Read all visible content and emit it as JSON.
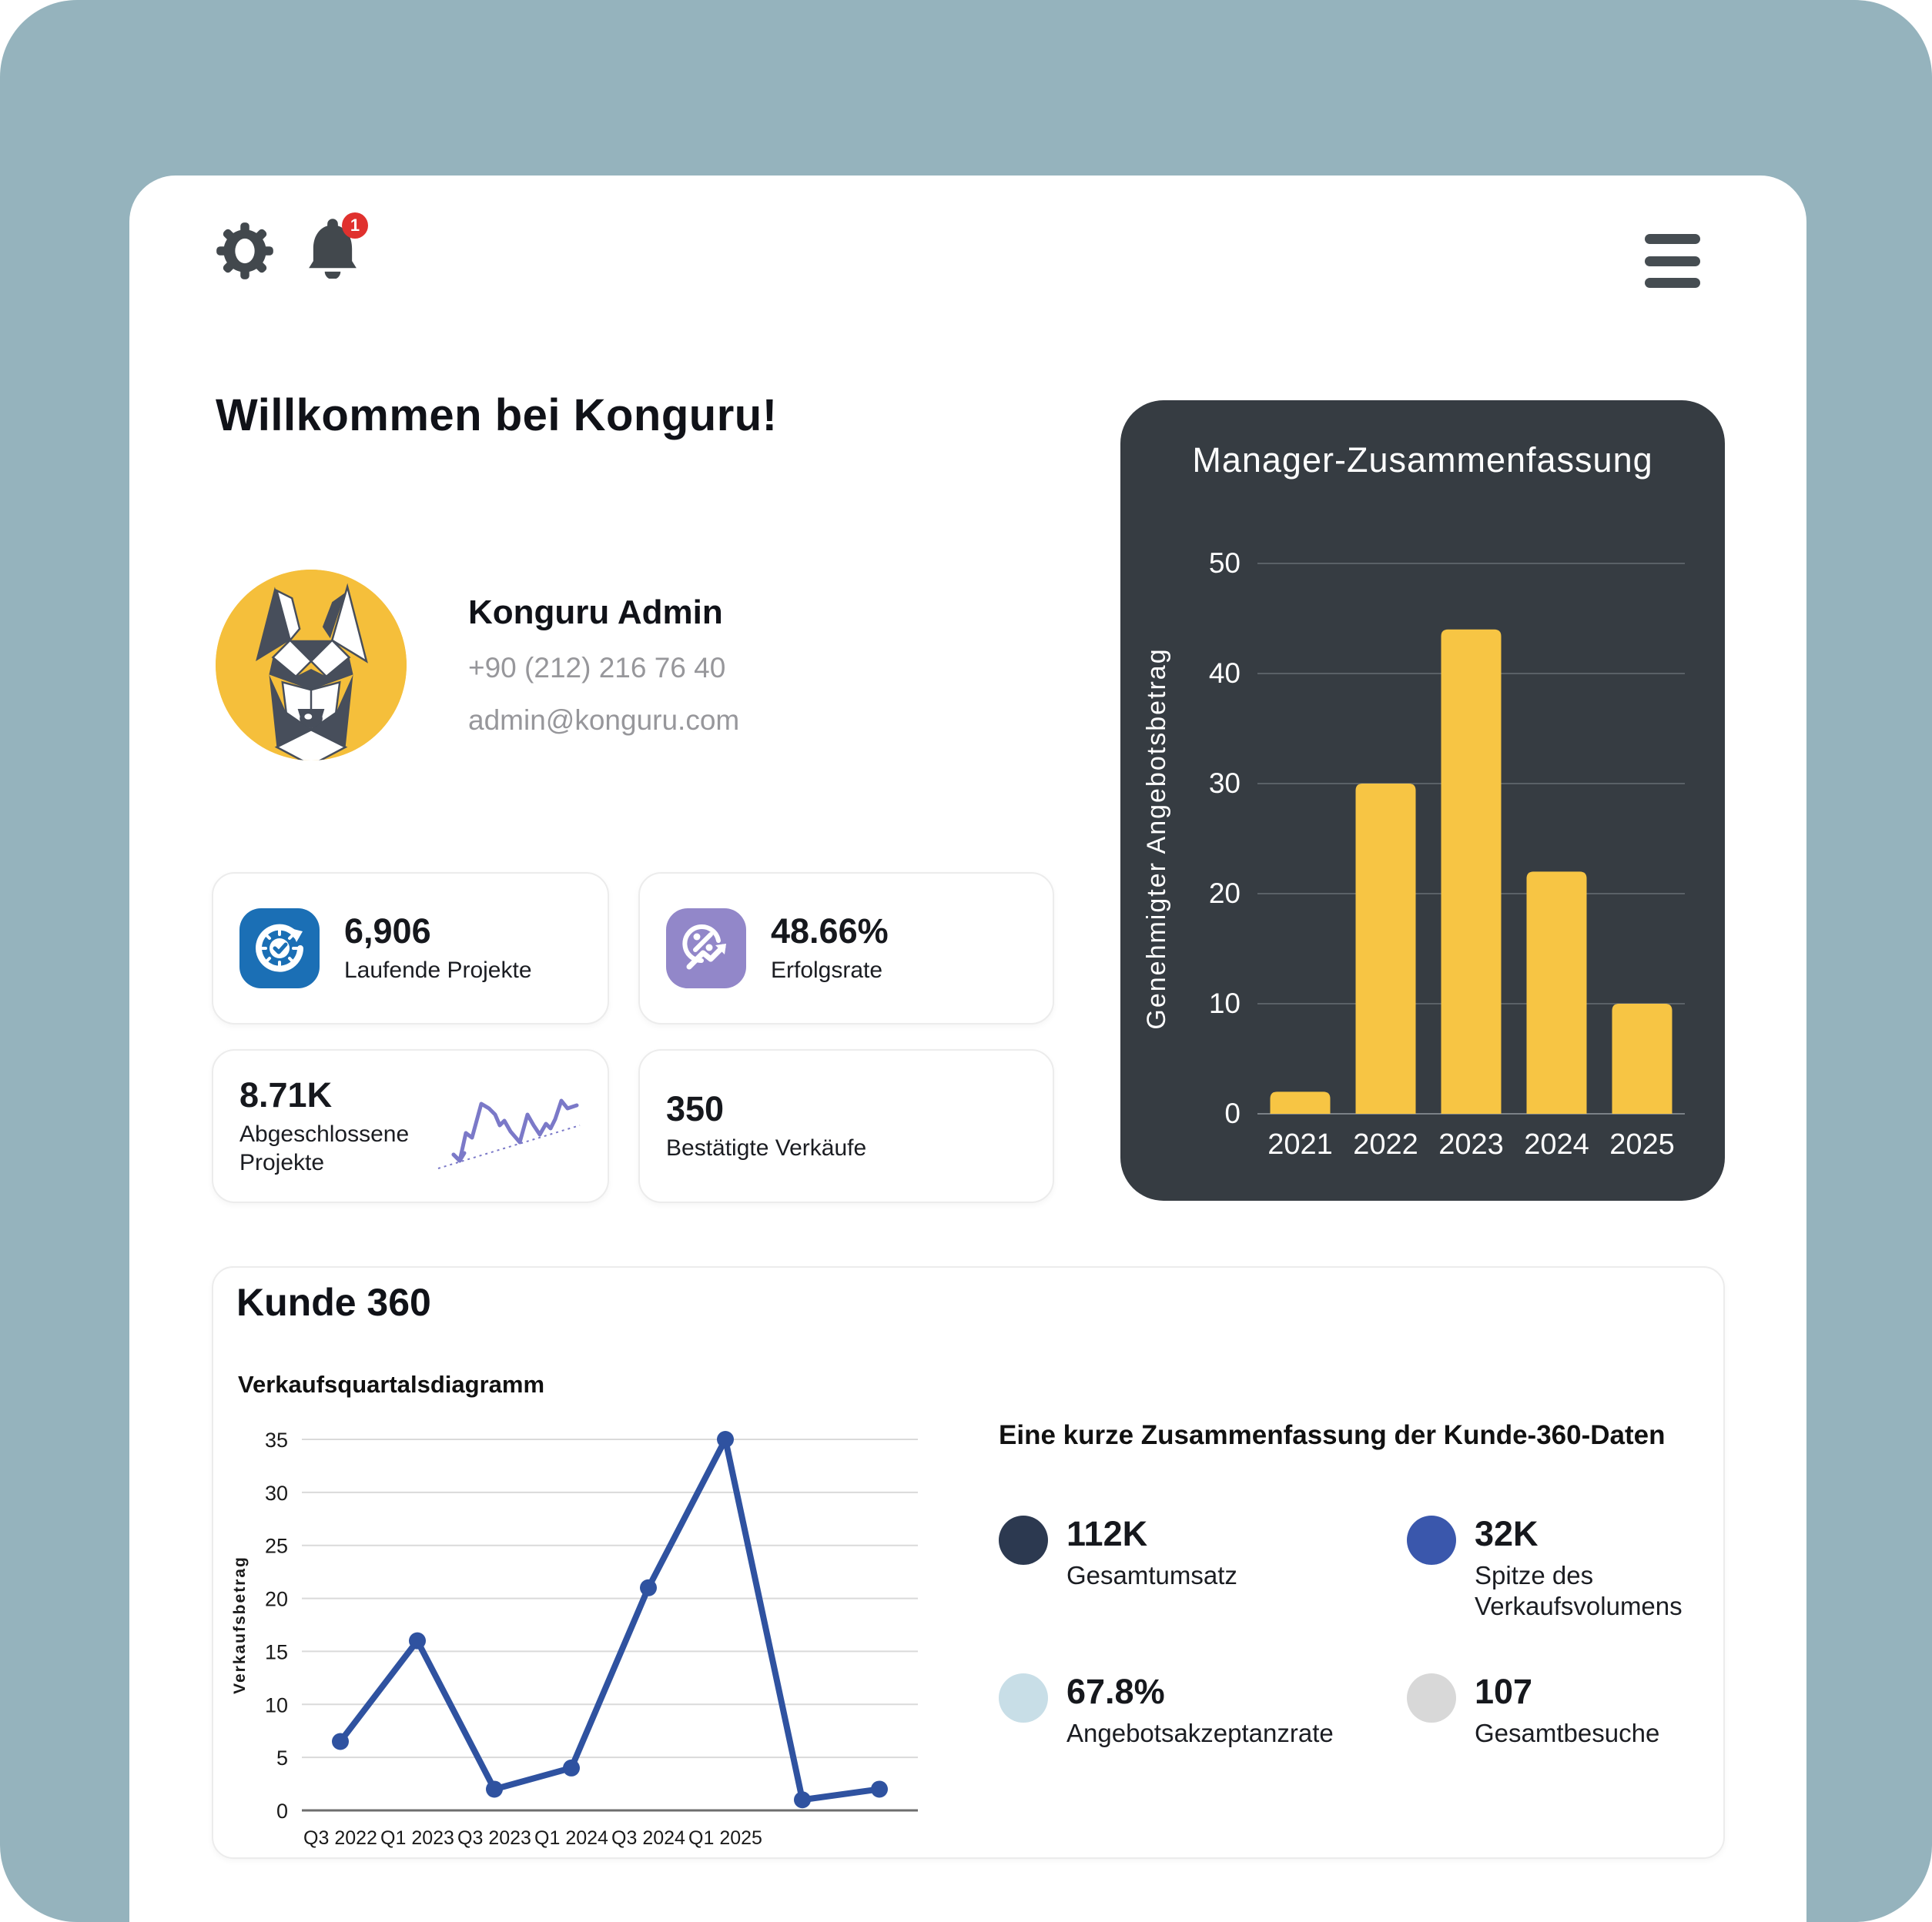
{
  "topbar": {
    "notification_count": "1"
  },
  "welcome": {
    "title": "Willkommen bei Konguru!"
  },
  "profile": {
    "name": "Konguru Admin",
    "phone": "+90 (212) 216 76 40",
    "email": "admin@konguru.com"
  },
  "stat_cards": [
    {
      "value": "6,906",
      "label": "Laufende Projekte",
      "icon": "clock-refresh-check-icon",
      "icon_color": "#1B6FB5"
    },
    {
      "value": "48.66%",
      "label": "Erfolgsrate",
      "icon": "percent-trend-icon",
      "icon_color": "#9287C9"
    },
    {
      "value": "8.71K",
      "label": "Abgeschlossene Projekte",
      "icon": "sparkline-graphic",
      "icon_color": "#7B79C8"
    },
    {
      "value": "350",
      "label": "Bestätigte Verkäufe"
    }
  ],
  "manager_summary": {
    "title": "Manager-Zusammenfassung"
  },
  "kunde360": {
    "title": "Kunde 360",
    "subtitle": "Verkaufsquartalsdiagramm",
    "summary_title": "Eine kurze Zusammenfassung der Kunde-360-Daten",
    "summary_stats": [
      {
        "value": "112K",
        "label": "Gesamtumsatz",
        "color": "#2C3950"
      },
      {
        "value": "32K",
        "label": "Spitze des Verkaufsvolumens",
        "color": "#3A57AC"
      },
      {
        "value": "67.8%",
        "label": "Angebotsakzeptanzrate",
        "color": "#C8DEE7"
      },
      {
        "value": "107",
        "label": "Gesamtbesuche",
        "color": "#D8D8D8"
      }
    ]
  },
  "chart_data": [
    {
      "type": "bar",
      "title": "Manager-Zusammenfassung",
      "categories": [
        "2021",
        "2022",
        "2023",
        "2024",
        "2025"
      ],
      "values": [
        2,
        30,
        44,
        22,
        10
      ],
      "xlabel": "",
      "ylabel": "Genehmigter Angebotsbetrag",
      "ylim": [
        0,
        50
      ],
      "yticks": [
        0,
        10,
        20,
        30,
        40,
        50
      ],
      "grid": true,
      "bar_color": "#F7C544",
      "background": "#363C42"
    },
    {
      "type": "line",
      "title": "Verkaufsquartalsdiagramm",
      "x_labels": [
        "Q3 2022",
        "Q1 2023",
        "Q3 2023",
        "Q1 2024",
        "Q3 2024",
        "Q1 2025",
        "",
        ""
      ],
      "values": [
        6.5,
        16,
        2,
        4,
        21,
        35,
        1,
        2
      ],
      "xlabel": "",
      "ylabel": "Verkaufsbetrag",
      "ylim": [
        0,
        35
      ],
      "yticks": [
        0,
        5,
        10,
        15,
        20,
        25,
        30,
        35
      ],
      "grid": true,
      "line_color": "#2F52A0",
      "legend": "none"
    }
  ]
}
